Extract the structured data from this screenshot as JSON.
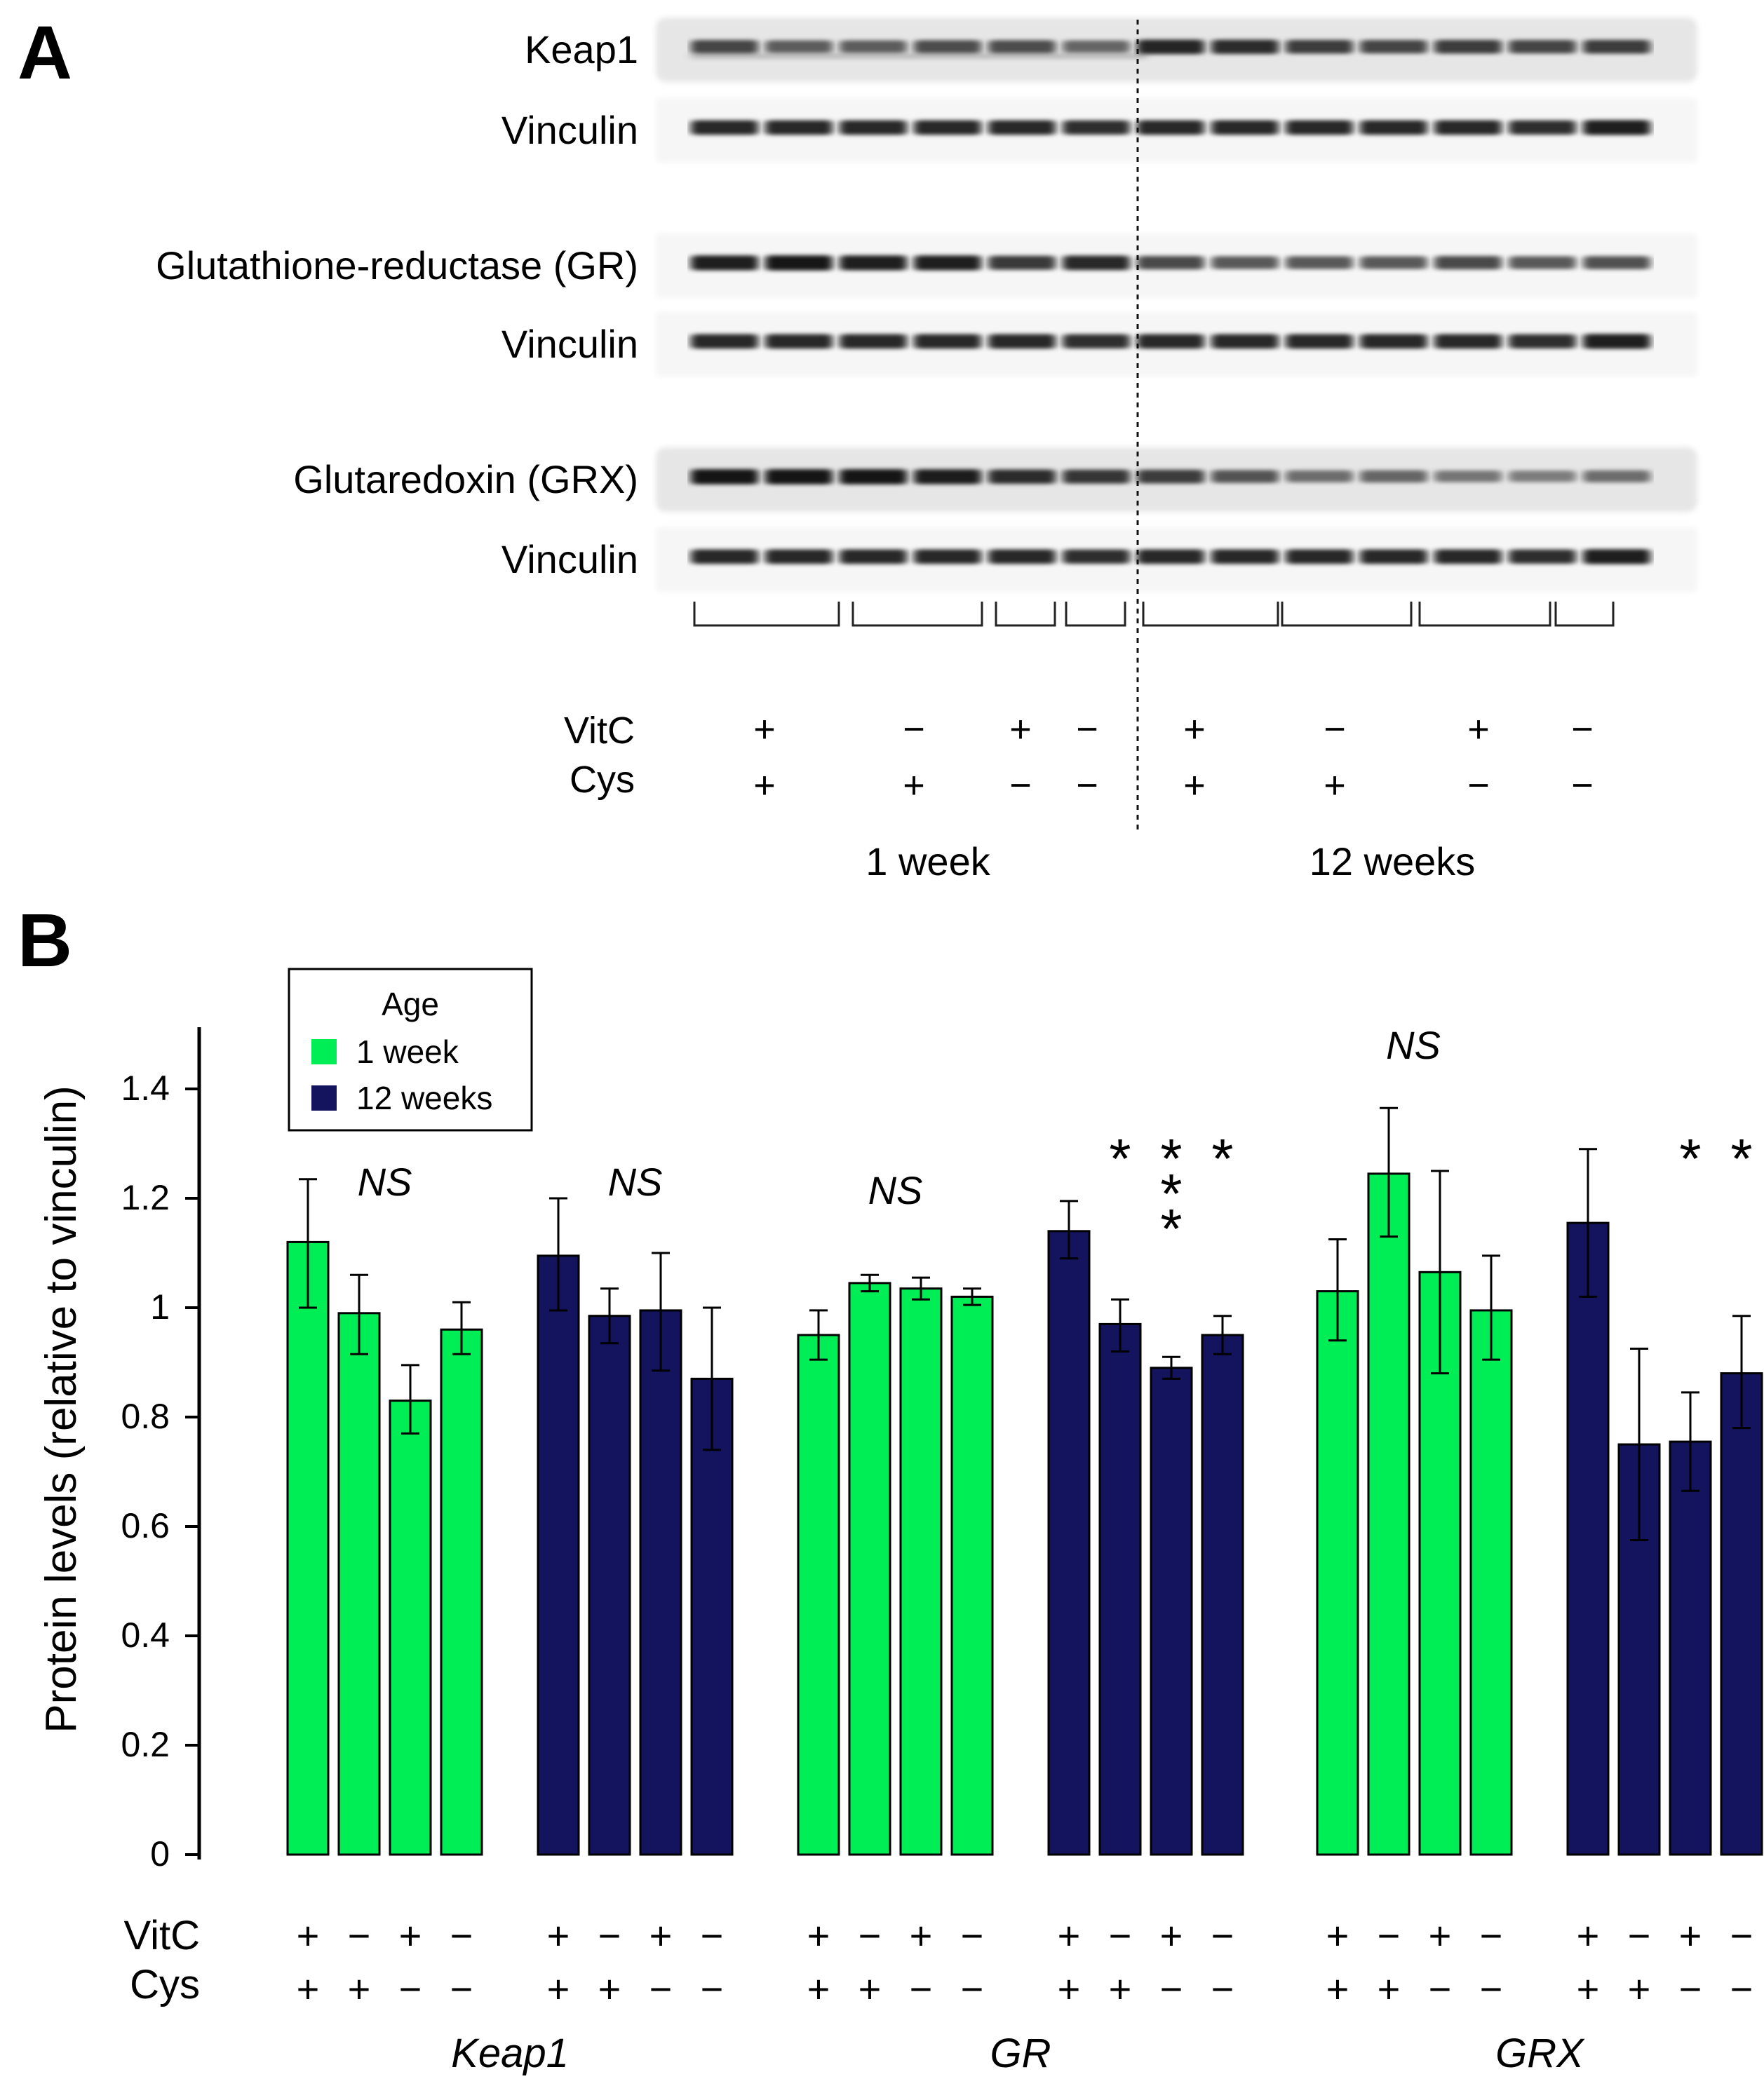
{
  "panel_a": {
    "label": "A",
    "blots": [
      {
        "label": "Keap1",
        "kind": "Keap1"
      },
      {
        "label": "Vinculin",
        "kind": "loading"
      },
      {
        "label": "Glutathione-reductase (GR)",
        "kind": "GR"
      },
      {
        "label": "Vinculin",
        "kind": "loading"
      },
      {
        "label": "Glutaredoxin (GRX)",
        "kind": "GRX"
      },
      {
        "label": "Vinculin",
        "kind": "loading"
      }
    ],
    "row_labels": [
      "VitC",
      "Cys"
    ],
    "groups": [
      {
        "vitc": "+",
        "cys": "+"
      },
      {
        "vitc": "−",
        "cys": "+"
      },
      {
        "vitc": "+",
        "cys": "−"
      },
      {
        "vitc": "−",
        "cys": "−"
      },
      {
        "vitc": "+",
        "cys": "+"
      },
      {
        "vitc": "−",
        "cys": "+"
      },
      {
        "vitc": "+",
        "cys": "−"
      },
      {
        "vitc": "−",
        "cys": "−"
      }
    ],
    "ages": [
      "1 week",
      "12 weeks"
    ]
  },
  "panel_b": {
    "label": "B",
    "row_labels": [
      "VitC",
      "Cys"
    ]
  },
  "colors": {
    "week1": "#00ee55",
    "week12": "#13135e"
  },
  "chart_data": {
    "type": "bar",
    "ylabel": "Protein levels (relative to vinculin)",
    "xlabel": "",
    "ylim": [
      0,
      1.5
    ],
    "yticks": [
      "0",
      "0.2",
      "0.4",
      "0.6",
      "0.8",
      "1",
      "1.2",
      "1.4"
    ],
    "ytick_values": [
      0,
      0.2,
      0.4,
      0.6,
      0.8,
      1.0,
      1.2,
      1.4
    ],
    "legend": {
      "title": "Age",
      "placement": "top-left",
      "entries": [
        "1 week",
        "12 weeks"
      ]
    },
    "categories": [
      "+ / +",
      "− / +",
      "+ / −",
      "− / −"
    ],
    "treatments": [
      {
        "vitc": "+",
        "cys": "+"
      },
      {
        "vitc": "−",
        "cys": "+"
      },
      {
        "vitc": "+",
        "cys": "−"
      },
      {
        "vitc": "−",
        "cys": "−"
      }
    ],
    "groups": [
      {
        "name": "Keap1",
        "series": [
          {
            "name": "1 week",
            "values": [
              1.12,
              0.99,
              0.83,
              0.96
            ],
            "err_lo": [
              1.0,
              0.915,
              0.77,
              0.915
            ],
            "err_hi": [
              1.235,
              1.06,
              0.895,
              1.01
            ],
            "annotation": "NS",
            "stars": [
              "",
              "",
              "",
              ""
            ]
          },
          {
            "name": "12 weeks",
            "values": [
              1.095,
              0.985,
              0.995,
              0.87
            ],
            "err_lo": [
              0.995,
              0.935,
              0.885,
              0.74
            ],
            "err_hi": [
              1.2,
              1.035,
              1.1,
              1.0
            ],
            "annotation": "NS",
            "stars": [
              "",
              "",
              "",
              ""
            ]
          }
        ]
      },
      {
        "name": "GR",
        "series": [
          {
            "name": "1 week",
            "values": [
              0.95,
              1.045,
              1.035,
              1.02
            ],
            "err_lo": [
              0.905,
              1.03,
              1.015,
              1.005
            ],
            "err_hi": [
              0.995,
              1.06,
              1.055,
              1.035
            ],
            "annotation": "NS",
            "stars": [
              "",
              "",
              "",
              ""
            ]
          },
          {
            "name": "12 weeks",
            "values": [
              1.14,
              0.97,
              0.89,
              0.95
            ],
            "err_lo": [
              1.09,
              0.92,
              0.87,
              0.915
            ],
            "err_hi": [
              1.195,
              1.015,
              0.91,
              0.985
            ],
            "annotation": "",
            "stars": [
              "",
              "*",
              "***",
              "*"
            ]
          }
        ]
      },
      {
        "name": "GRX",
        "series": [
          {
            "name": "1 week",
            "values": [
              1.03,
              1.245,
              1.065,
              0.995
            ],
            "err_lo": [
              0.94,
              1.13,
              0.88,
              0.905
            ],
            "err_hi": [
              1.125,
              1.365,
              1.25,
              1.095
            ],
            "annotation": "NS",
            "stars": [
              "",
              "",
              "",
              ""
            ]
          },
          {
            "name": "12 weeks",
            "values": [
              1.155,
              0.75,
              0.755,
              0.88
            ],
            "err_lo": [
              1.02,
              0.575,
              0.665,
              0.78
            ],
            "err_hi": [
              1.29,
              0.925,
              0.845,
              0.985
            ],
            "annotation": "",
            "stars": [
              "",
              "",
              "*",
              "*"
            ]
          }
        ]
      }
    ]
  }
}
